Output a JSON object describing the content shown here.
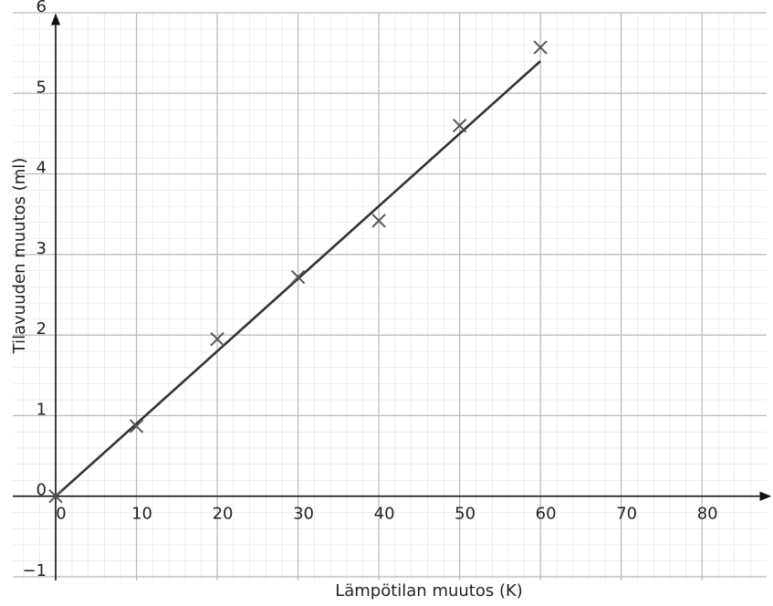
{
  "chart_data": {
    "type": "scatter",
    "x_label": "Lämpötilan muutos (K)",
    "y_label": "Tilavuuden muutos (ml)",
    "x": [
      0,
      10,
      20,
      30,
      40,
      50,
      60
    ],
    "series": [
      {
        "color": "#555555",
        "values": [
          0,
          0.87,
          1.95,
          2.72,
          3.42,
          4.6,
          5.57
        ]
      }
    ],
    "fit_line": {
      "color": "#333333",
      "x": [
        0,
        60
      ],
      "values": [
        0,
        5.4
      ]
    },
    "xlim": [
      0,
      88
    ],
    "ylim": [
      -1,
      6
    ],
    "xticks": [
      0,
      10,
      20,
      30,
      40,
      50,
      60,
      70,
      80
    ],
    "yticks": [
      {
        "value": -1,
        "label": "−1"
      },
      0,
      1,
      2,
      3,
      4,
      5,
      6
    ],
    "grid": true
  }
}
